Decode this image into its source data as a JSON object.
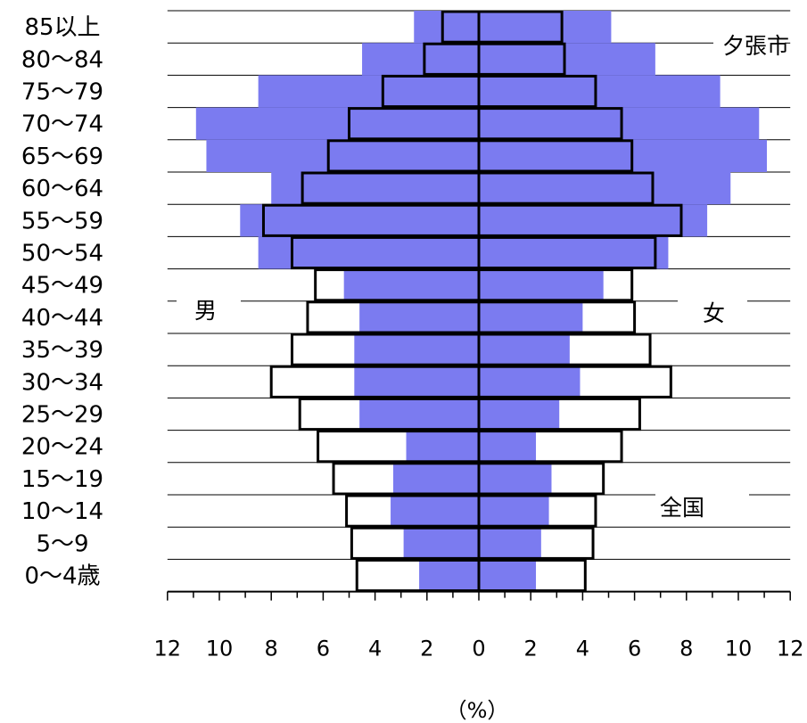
{
  "chart_data": {
    "type": "bar",
    "orientation": "horizontal",
    "layout": "population-pyramid",
    "categories": [
      "85以上",
      "80～84",
      "75～79",
      "70～74",
      "65～69",
      "60～64",
      "55～59",
      "50～54",
      "45～49",
      "40～44",
      "35～39",
      "30～34",
      "25～29",
      "20～24",
      "15～19",
      "10～14",
      "5～9",
      "0～4歳"
    ],
    "series": [
      {
        "name": "夕張市 男",
        "side": "left",
        "style": "blue-fill",
        "color": "#7b7bf0",
        "values": [
          2.5,
          4.5,
          8.5,
          10.9,
          10.5,
          8.0,
          9.2,
          8.5,
          5.2,
          4.6,
          4.8,
          4.8,
          4.6,
          2.8,
          3.3,
          3.4,
          2.9,
          2.3
        ]
      },
      {
        "name": "夕張市 女",
        "side": "right",
        "style": "blue-fill",
        "color": "#7b7bf0",
        "values": [
          5.1,
          6.8,
          9.3,
          10.8,
          11.1,
          9.7,
          8.8,
          7.3,
          4.8,
          4.0,
          3.5,
          3.9,
          3.1,
          2.2,
          2.8,
          2.7,
          2.4,
          2.2
        ]
      },
      {
        "name": "全国 男",
        "side": "left",
        "style": "outline",
        "color": "#000000",
        "values": [
          1.4,
          2.1,
          3.7,
          5.0,
          5.8,
          6.8,
          8.3,
          7.2,
          6.3,
          6.6,
          7.2,
          8.0,
          6.9,
          6.2,
          5.6,
          5.1,
          4.9,
          4.7
        ]
      },
      {
        "name": "全国 女",
        "side": "right",
        "style": "outline",
        "color": "#000000",
        "values": [
          3.2,
          3.3,
          4.5,
          5.5,
          5.9,
          6.7,
          7.8,
          6.8,
          5.9,
          6.0,
          6.6,
          7.4,
          6.2,
          5.5,
          4.8,
          4.5,
          4.4,
          4.1
        ]
      }
    ],
    "xlim": [
      -12,
      12
    ],
    "x_tick_labels": [
      "12",
      "10",
      "8",
      "6",
      "4",
      "2",
      "0",
      "2",
      "4",
      "6",
      "8",
      "10",
      "12"
    ],
    "xlabel": "（%）",
    "annotations": {
      "city": "夕張市",
      "male": "男",
      "female": "女",
      "national": "全国"
    }
  }
}
